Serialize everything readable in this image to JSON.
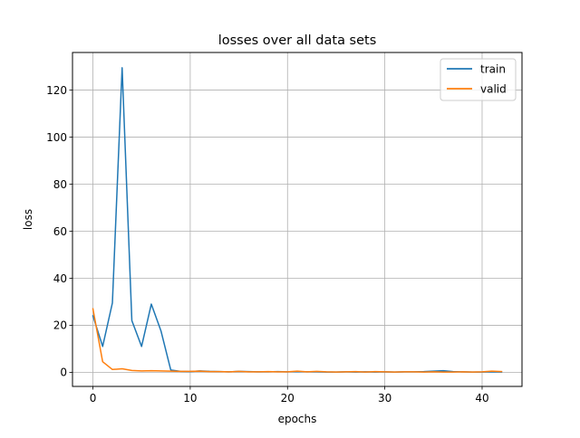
{
  "chart_data": {
    "type": "line",
    "title": "losses over all data sets",
    "xlabel": "epochs",
    "ylabel": "loss",
    "xlim": [
      -2.1,
      44.1
    ],
    "ylim": [
      -6.0,
      136.0
    ],
    "xticks": [
      0,
      10,
      20,
      30,
      40
    ],
    "yticks": [
      0,
      20,
      40,
      60,
      80,
      100,
      120
    ],
    "grid": true,
    "legend_position": "top-right",
    "series": [
      {
        "name": "train",
        "color": "#1f77b4",
        "x": [
          0,
          1,
          2,
          3,
          4,
          5,
          6,
          7,
          8,
          9,
          10,
          11,
          12,
          13,
          14,
          15,
          16,
          17,
          18,
          19,
          20,
          21,
          22,
          23,
          24,
          25,
          26,
          27,
          28,
          29,
          30,
          31,
          32,
          33,
          34,
          35,
          36,
          37,
          38,
          39,
          40,
          41,
          42
        ],
        "y": [
          24,
          11,
          29.5,
          129.5,
          22,
          11,
          29,
          17.5,
          1,
          0.4,
          0.3,
          0.6,
          0.4,
          0.3,
          0.2,
          0.4,
          0.3,
          0.2,
          0.2,
          0.3,
          0.2,
          0.3,
          0.2,
          0.2,
          0.1,
          0.1,
          0.2,
          0.1,
          0.2,
          0.1,
          0.2,
          0.1,
          0.2,
          0.2,
          0.3,
          0.5,
          0.7,
          0.3,
          0.2,
          0.1,
          0.1,
          0.2,
          0.1
        ]
      },
      {
        "name": "valid",
        "color": "#ff7f0e",
        "x": [
          0,
          1,
          2,
          3,
          4,
          5,
          6,
          7,
          8,
          9,
          10,
          11,
          12,
          13,
          14,
          15,
          16,
          17,
          18,
          19,
          20,
          21,
          22,
          23,
          24,
          25,
          26,
          27,
          28,
          29,
          30,
          31,
          32,
          33,
          34,
          35,
          36,
          37,
          38,
          39,
          40,
          41,
          42
        ],
        "y": [
          27,
          4.5,
          1.2,
          1.5,
          0.8,
          0.6,
          0.7,
          0.6,
          0.5,
          0.4,
          0.4,
          0.5,
          0.3,
          0.3,
          0.2,
          0.4,
          0.2,
          0.2,
          0.3,
          0.2,
          0.2,
          0.5,
          0.2,
          0.4,
          0.2,
          0.1,
          0.2,
          0.3,
          0.1,
          0.3,
          0.2,
          0.1,
          0.2,
          0.2,
          0.1,
          0.2,
          0.1,
          0.1,
          0.2,
          0.1,
          0.2,
          0.5,
          0.3
        ]
      }
    ]
  }
}
